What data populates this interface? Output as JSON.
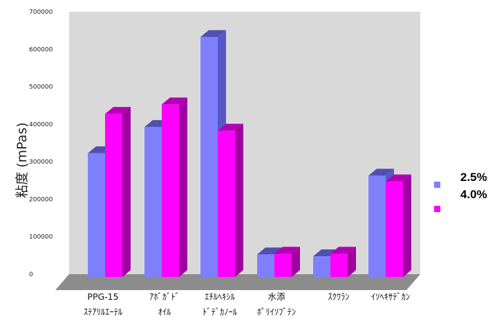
{
  "chart_data": {
    "type": "bar",
    "title": "",
    "xlabel": "",
    "ylabel": "粘度 (mPas)",
    "ylim": [
      0,
      700000
    ],
    "yticks": [
      "0",
      "100000",
      "200000",
      "300000",
      "400000",
      "500000",
      "600000",
      "700000"
    ],
    "categories": [
      [
        "PPG-15",
        "ｽﾃｱﾘﾙｴｰﾃﾙ"
      ],
      [
        "ｱﾎﾞｶﾞﾄﾞ",
        "ｵｲﾙ"
      ],
      [
        "ｴﾁﾙﾍｷｼﾙ",
        "ﾄﾞﾃﾞｶﾉｰﾙ"
      ],
      [
        "水添",
        "ﾎﾟﾘｲｿﾌﾞﾃﾝ"
      ],
      [
        "ｽｸﾜﾗﾝ"
      ],
      [
        "ｲｿﾍｷｻﾃﾞｶﾝ"
      ]
    ],
    "series": [
      {
        "name": "2.5%",
        "values": [
          330000,
          400000,
          640000,
          60000,
          55000,
          270000
        ]
      },
      {
        "name": "4.0%",
        "values": [
          435000,
          460000,
          390000,
          62000,
          62000,
          255000
        ]
      }
    ],
    "legend_position": "right",
    "grid": false
  },
  "colors": {
    "series_2_5_front": "#8080ff",
    "series_2_5_side": "#5858c8",
    "series_2_5_top": "#5050b0",
    "series_4_0_front": "#ff00ff",
    "series_4_0_side": "#a000a0",
    "series_4_0_top": "#b400b4",
    "wall": "#d9d9d9",
    "floor": "#8c8c8c"
  }
}
